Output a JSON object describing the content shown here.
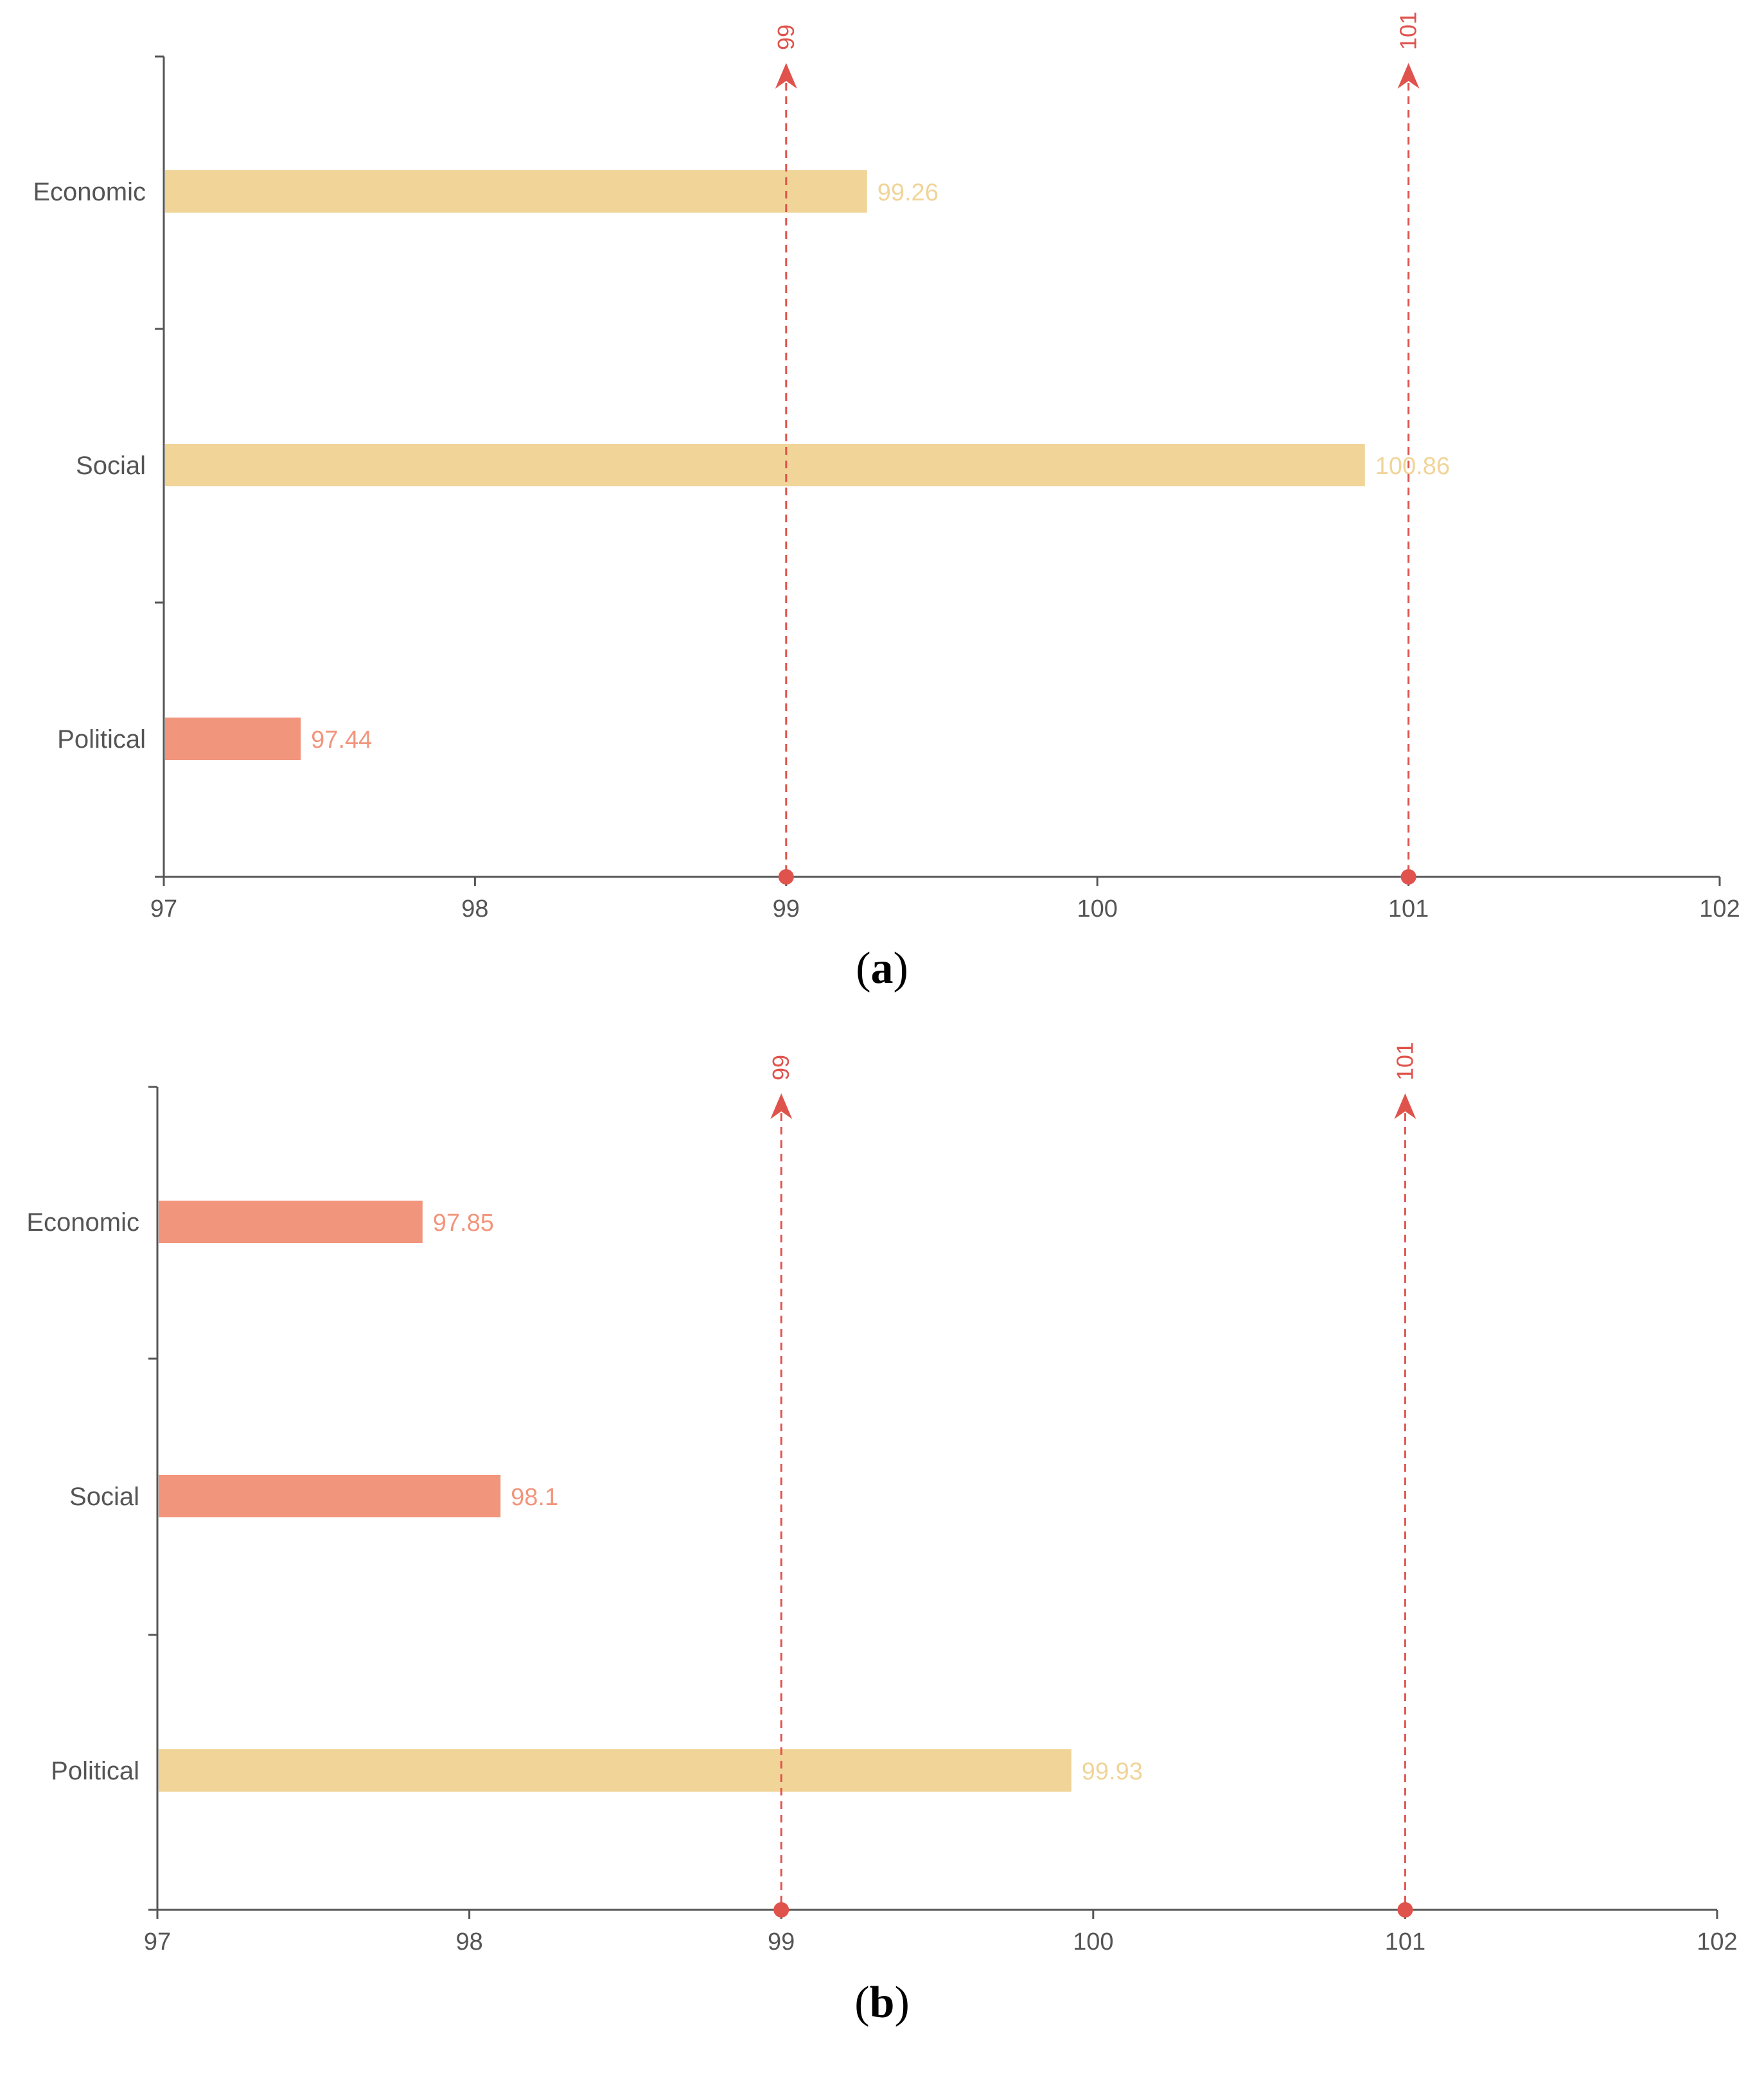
{
  "colors": {
    "above": "#f0d498",
    "below": "#f1957c",
    "marker": "#e0534c",
    "axis": "#555555"
  },
  "chart_data": [
    {
      "type": "bar",
      "orientation": "horizontal",
      "panel_label": "a",
      "categories": [
        "Economic",
        "Social",
        "Political"
      ],
      "values": [
        99.26,
        100.86,
        97.44
      ],
      "value_labels": [
        "99.26",
        "100.86",
        "97.44"
      ],
      "colors": [
        "#f0d498",
        "#f0d498",
        "#f1957c"
      ],
      "xlim": [
        97,
        102
      ],
      "xticks": [
        "97",
        "98",
        "99",
        "100",
        "101",
        "102"
      ],
      "mark_lines": [
        {
          "value": 99,
          "label": "99"
        },
        {
          "value": 101,
          "label": "101"
        }
      ],
      "title": "",
      "xlabel": "",
      "ylabel": ""
    },
    {
      "type": "bar",
      "orientation": "horizontal",
      "panel_label": "b",
      "categories": [
        "Economic",
        "Social",
        "Political"
      ],
      "values": [
        97.85,
        98.1,
        99.93
      ],
      "value_labels": [
        "97.85",
        "98.1",
        "99.93"
      ],
      "colors": [
        "#f1957c",
        "#f1957c",
        "#f0d498"
      ],
      "xlim": [
        97,
        102
      ],
      "xticks": [
        "97",
        "98",
        "99",
        "100",
        "101",
        "102"
      ],
      "mark_lines": [
        {
          "value": 99,
          "label": "99"
        },
        {
          "value": 101,
          "label": "101"
        }
      ],
      "title": "",
      "xlabel": "",
      "ylabel": ""
    }
  ]
}
